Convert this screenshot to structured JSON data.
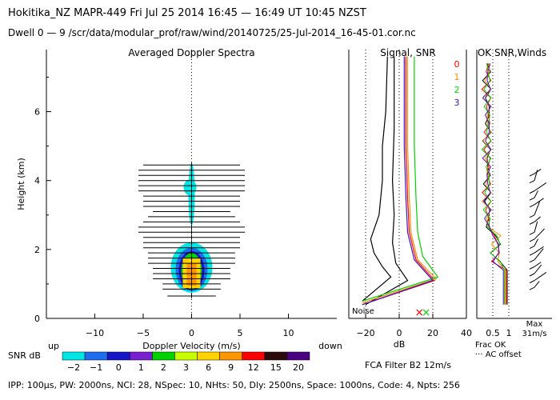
{
  "header": {
    "line1": "Hokitika_NZ   MAPR-449   Fri Jul 25 2014 16:45 — 16:49 UT 10:45 NZST",
    "line2": "Dwell   0 —  9    /scr/data/modular_prof/raw/wind/20140725/25-Jul-2014_16-45-01.cor.nc"
  },
  "panels": {
    "spectra_title": "Averaged Doppler Spectra",
    "signal_title": "Signal, SNR",
    "ok_title": "OK SNR,Winds"
  },
  "colorbar": {
    "label": "SNR dB",
    "ticks": [
      "−2",
      "−1",
      "0",
      "1",
      "2",
      "3",
      "6",
      "9",
      "12",
      "15",
      "20"
    ],
    "colors": [
      "#00e5e5",
      "#1e6cf0",
      "#1414c8",
      "#7a1ed2",
      "#00d200",
      "#c8ff00",
      "#ffd200",
      "#ff9600",
      "#ff0000",
      "#2d0a0a",
      "#4b0082"
    ],
    "up_label": "up",
    "down_label": "down"
  },
  "legend": {
    "items": [
      {
        "label": "0",
        "color": "#ff0000"
      },
      {
        "label": "1",
        "color": "#ff8c00"
      },
      {
        "label": "2",
        "color": "#00d200"
      },
      {
        "label": "3",
        "color": "#3b14c8"
      }
    ]
  },
  "annotations": {
    "noise": "Noise",
    "fca": "FCA Filter B2 12m/s",
    "frac_ok": "Frac OK",
    "ac_offset": "··· AC offset",
    "max": "Max",
    "max_speed": "31m/s"
  },
  "footer": "IPP: 100µs,   PW: 2000ns,   NCI:  28,  NSpec: 10,  NHts: 50,   Dly: 2500ns,   Space: 1000ns,   Code: 4,   Npts: 256",
  "chart_data": [
    {
      "type": "heatmap",
      "title": "Averaged Doppler Spectra",
      "xlabel": "Doppler Velocity (m/s)",
      "ylabel": "Height (km)",
      "xlim": [
        -15,
        15
      ],
      "ylim": [
        0,
        7.8
      ],
      "xticks": [
        -10,
        -5,
        0,
        5,
        10
      ],
      "yticks": [
        0,
        2,
        4,
        6
      ],
      "spectrum_heights_km": [
        0.65,
        0.85,
        1.0,
        1.15,
        1.3,
        1.45,
        1.6,
        1.75,
        1.9,
        2.05,
        2.2,
        2.35,
        2.5,
        2.65,
        2.8,
        2.95,
        3.1,
        3.25,
        3.4,
        3.55,
        3.7,
        3.85,
        4.0,
        4.15,
        4.3,
        4.45
      ],
      "spectrum_halfwidth_ms": [
        2.5,
        3,
        3,
        4,
        4,
        4,
        4.5,
        4.5,
        4.5,
        5,
        5,
        5,
        5.5,
        5.5,
        5,
        4.5,
        4,
        5,
        5,
        5,
        5.5,
        5.5,
        5.5,
        5.5,
        5.5,
        5
      ],
      "echo_core": {
        "label": "yellow/orange",
        "center_ms": 0,
        "bottom_km": 0.85,
        "top_km": 1.75
      }
    },
    {
      "type": "line",
      "title": "Signal, SNR",
      "xlabel": "dB",
      "xlim": [
        -30,
        40
      ],
      "xticks": [
        -20,
        0,
        20,
        40
      ],
      "ylim": [
        0,
        7.8
      ],
      "series": [
        {
          "color": "#000000",
          "points": [
            [
              -22,
              0.5
            ],
            [
              -5,
              1.2
            ],
            [
              -10,
              1.5
            ],
            [
              -15,
              1.9
            ],
            [
              -17,
              2.3
            ],
            [
              -12,
              3.0
            ],
            [
              -10,
              4.0
            ],
            [
              -10,
              5.0
            ],
            [
              -8,
              6.0
            ],
            [
              -7,
              7.6
            ]
          ]
        },
        {
          "color": "#000000",
          "points": [
            [
              -20,
              0.4
            ],
            [
              5,
              1.1
            ],
            [
              -2,
              1.6
            ],
            [
              -4,
              2.2
            ],
            [
              -3,
              3.0
            ],
            [
              -4,
              4.0
            ],
            [
              -3,
              5.5
            ],
            [
              -3,
              7.6
            ]
          ]
        },
        {
          "color": "#ff0000",
          "points": [
            [
              -22,
              0.4
            ],
            [
              21,
              1.1
            ],
            [
              10,
              1.7
            ],
            [
              6,
              2.5
            ],
            [
              5,
              3.5
            ],
            [
              4,
              5.0
            ],
            [
              4,
              7.6
            ]
          ]
        },
        {
          "color": "#ff8c00",
          "points": [
            [
              -22,
              0.45
            ],
            [
              22,
              1.15
            ],
            [
              11,
              1.7
            ],
            [
              7,
              2.5
            ],
            [
              6,
              3.5
            ],
            [
              5,
              5.0
            ],
            [
              5,
              7.6
            ]
          ]
        },
        {
          "color": "#00d200",
          "points": [
            [
              -22,
              0.5
            ],
            [
              23,
              1.2
            ],
            [
              14,
              1.8
            ],
            [
              11,
              2.5
            ],
            [
              10,
              3.5
            ],
            [
              9,
              5.0
            ],
            [
              9,
              7.6
            ]
          ]
        },
        {
          "color": "#3b14c8",
          "points": [
            [
              -22,
              0.4
            ],
            [
              20,
              1.1
            ],
            [
              9,
              1.7
            ],
            [
              5,
              2.5
            ],
            [
              4,
              3.5
            ],
            [
              3,
              5.0
            ],
            [
              3,
              7.6
            ]
          ]
        }
      ]
    },
    {
      "type": "line",
      "title": "OK SNR,Winds",
      "xlabel": "Frac OK",
      "xticks": [
        "0.5",
        "1"
      ],
      "xlim": [
        0,
        1
      ],
      "ylim": [
        0,
        7.8
      ]
    }
  ]
}
